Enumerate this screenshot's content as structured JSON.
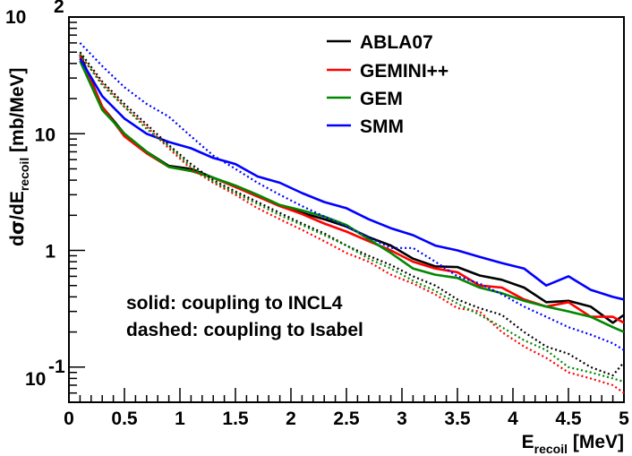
{
  "chart_data": {
    "type": "line",
    "xlabel": {
      "main": "E",
      "sub": "recoil",
      "unit": " [MeV]"
    },
    "ylabel": {
      "prefix": "d",
      "sigma": "σ",
      "mid": "/dE",
      "sub": "recoil",
      "unit": " [mb/MeV]"
    },
    "x_range": [
      0,
      5
    ],
    "y_range": [
      0.05,
      100
    ],
    "y_scale": "log",
    "grid": false,
    "legend_position": "top-right",
    "x_ticks": [
      "0",
      "0.5",
      "1",
      "1.5",
      "2",
      "2.5",
      "3",
      "3.5",
      "4",
      "4.5",
      "5"
    ],
    "y_tick_labels": [
      {
        "base": "10",
        "exp": "-1",
        "value": 0.1
      },
      {
        "base": "1",
        "exp": "",
        "value": 1
      },
      {
        "base": "10",
        "exp": "",
        "value": 10
      },
      {
        "base": "10",
        "exp": "2",
        "value": 100
      }
    ],
    "annotations": [
      "solid: coupling to INCL4",
      "dashed: coupling to Isabel"
    ],
    "x": [
      0.1,
      0.3,
      0.5,
      0.7,
      0.9,
      1.1,
      1.3,
      1.5,
      1.7,
      1.9,
      2.1,
      2.3,
      2.5,
      2.7,
      2.9,
      3.1,
      3.3,
      3.5,
      3.7,
      3.9,
      4.1,
      4.3,
      4.5,
      4.7,
      4.9,
      5.0
    ],
    "series": [
      {
        "name": "ABLA07",
        "color": "#000000",
        "style": "solid",
        "values": [
          48,
          17,
          10,
          7,
          5.3,
          5,
          4.2,
          3.5,
          2.9,
          2.4,
          2.1,
          1.85,
          1.6,
          1.3,
          1.1,
          0.85,
          0.73,
          0.72,
          0.61,
          0.56,
          0.48,
          0.36,
          0.37,
          0.33,
          0.24,
          0.28
        ]
      },
      {
        "name": "GEMINI++",
        "color": "#ff0000",
        "style": "solid",
        "values": [
          46,
          17,
          9.5,
          6.8,
          5.2,
          4.8,
          4.2,
          3.5,
          2.9,
          2.4,
          2.05,
          1.7,
          1.45,
          1.2,
          1.0,
          0.8,
          0.7,
          0.65,
          0.5,
          0.48,
          0.38,
          0.33,
          0.36,
          0.27,
          0.27,
          0.24
        ]
      },
      {
        "name": "GEM",
        "color": "#008800",
        "style": "solid",
        "values": [
          42,
          16,
          10,
          7,
          5.2,
          4.8,
          4.2,
          3.6,
          3.0,
          2.45,
          2.2,
          1.95,
          1.65,
          1.25,
          0.95,
          0.7,
          0.62,
          0.58,
          0.48,
          0.43,
          0.37,
          0.33,
          0.3,
          0.27,
          0.22,
          0.2
        ]
      },
      {
        "name": "SMM",
        "color": "#0000ff",
        "style": "solid",
        "values": [
          44,
          21,
          13.5,
          10,
          8.5,
          7.5,
          6.2,
          5.5,
          4.3,
          3.8,
          3.1,
          2.6,
          2.3,
          1.85,
          1.55,
          1.35,
          1.1,
          1.0,
          0.88,
          0.78,
          0.7,
          0.5,
          0.6,
          0.46,
          0.4,
          0.38
        ]
      },
      {
        "name": "",
        "color": "#000000",
        "style": "dotted",
        "values": [
          50,
          28,
          18,
          12,
          8,
          5.5,
          4,
          3.2,
          2.6,
          2.1,
          1.7,
          1.4,
          1.1,
          0.9,
          0.75,
          0.6,
          0.5,
          0.38,
          0.32,
          0.28,
          0.2,
          0.15,
          0.13,
          0.1,
          0.085,
          0.11
        ]
      },
      {
        "name": "",
        "color": "#ff0000",
        "style": "dotted",
        "values": [
          47,
          27,
          17,
          11.5,
          7.5,
          5.0,
          3.8,
          3.0,
          2.3,
          1.85,
          1.5,
          1.2,
          0.95,
          0.8,
          0.62,
          0.52,
          0.42,
          0.32,
          0.3,
          0.2,
          0.15,
          0.12,
          0.09,
          0.08,
          0.07,
          0.06
        ]
      },
      {
        "name": "",
        "color": "#008800",
        "style": "dotted",
        "values": [
          48,
          26,
          17,
          11,
          7.8,
          5.2,
          3.9,
          3.1,
          2.5,
          2.0,
          1.65,
          1.35,
          1.1,
          0.85,
          0.7,
          0.55,
          0.45,
          0.35,
          0.28,
          0.22,
          0.17,
          0.14,
          0.1,
          0.09,
          0.08,
          0.075
        ]
      },
      {
        "name": "",
        "color": "#0000ff",
        "style": "dotted",
        "values": [
          60,
          38,
          25,
          18,
          14,
          9.5,
          6.5,
          5.0,
          3.8,
          3.0,
          2.4,
          1.95,
          1.6,
          1.3,
          1.05,
          1.05,
          0.8,
          0.6,
          0.52,
          0.42,
          0.33,
          0.27,
          0.22,
          0.19,
          0.16,
          0.14
        ]
      }
    ]
  }
}
